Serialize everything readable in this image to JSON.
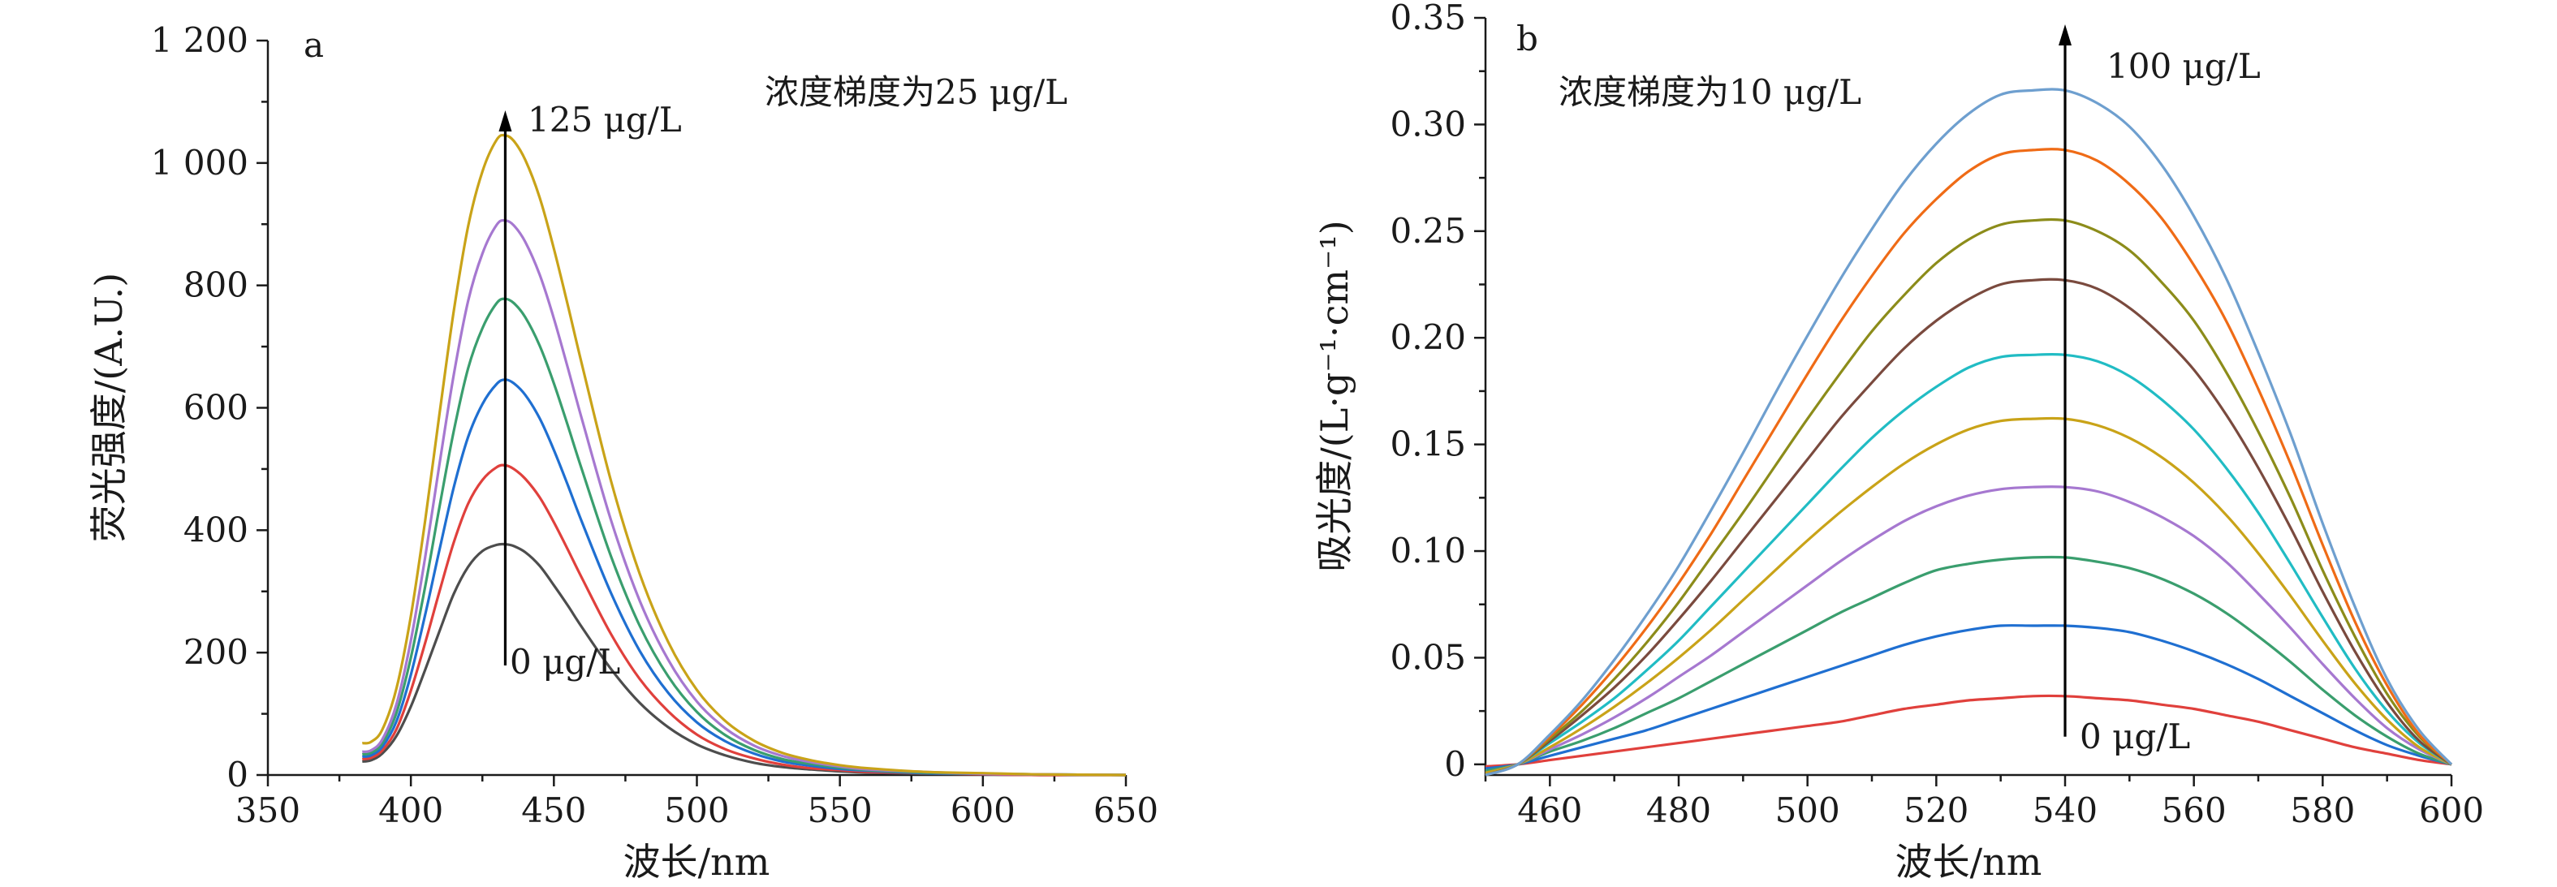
{
  "chart_data": [
    {
      "type": "line",
      "panel_label": "a",
      "xlabel": "波长/nm",
      "ylabel": "荧光强度/(A.U.)",
      "xlim": [
        350,
        650
      ],
      "ylim": [
        0,
        1200
      ],
      "xticks": [
        350,
        400,
        450,
        500,
        550,
        600,
        650
      ],
      "xtick_labels": [
        "350",
        "400",
        "450",
        "500",
        "550",
        "600",
        "650"
      ],
      "yticks": [
        0,
        200,
        400,
        600,
        800,
        1000,
        1200
      ],
      "ytick_labels": [
        "0",
        "200",
        "400",
        "600",
        "800",
        "1 000",
        "1 200"
      ],
      "grid": false,
      "annotations": {
        "gradient_note": "浓度梯度为25 μg/L",
        "arrow_top_label": "125 μg/L",
        "arrow_bottom_label": "0 μg/L",
        "arrow_x": 433,
        "arrow_from_y": 170,
        "arrow_to_y": 1090
      },
      "x": [
        383,
        386,
        390,
        395,
        400,
        405,
        410,
        415,
        420,
        425,
        430,
        433,
        436,
        440,
        445,
        450,
        455,
        460,
        470,
        480,
        490,
        500,
        510,
        520,
        530,
        540,
        550,
        560,
        580,
        600,
        620,
        650
      ],
      "series": [
        {
          "color": "#4d4d4d",
          "values": [
            22,
            24,
            35,
            64,
            112,
            172,
            235,
            296,
            340,
            366,
            376,
            377,
            374,
            364,
            342,
            310,
            276,
            240,
            173,
            118,
            78,
            50,
            32,
            20,
            13,
            9,
            6,
            4,
            2,
            1,
            0,
            0
          ]
        },
        {
          "color": "#e0403c",
          "values": [
            26,
            28,
            40,
            75,
            138,
            216,
            300,
            380,
            443,
            482,
            503,
            506,
            500,
            484,
            454,
            413,
            367,
            320,
            230,
            157,
            104,
            66,
            42,
            27,
            17,
            11,
            8,
            5,
            3,
            1,
            0,
            0
          ]
        },
        {
          "color": "#1f6fd1",
          "values": [
            30,
            32,
            46,
            88,
            164,
            262,
            368,
            470,
            552,
            606,
            639,
            646,
            640,
            621,
            583,
            531,
            472,
            411,
            297,
            203,
            134,
            86,
            55,
            35,
            22,
            15,
            10,
            7,
            3,
            2,
            1,
            0
          ]
        },
        {
          "color": "#3a9e6e",
          "values": [
            34,
            36,
            52,
            102,
            192,
            308,
            438,
            562,
            664,
            730,
            771,
            778,
            771,
            748,
            702,
            640,
            569,
            496,
            357,
            244,
            161,
            103,
            65,
            41,
            26,
            18,
            12,
            8,
            4,
            2,
            1,
            0
          ]
        },
        {
          "color": "#a678d0",
          "values": [
            38,
            40,
            58,
            116,
            220,
            356,
            508,
            654,
            774,
            852,
            899,
            906,
            898,
            871,
            818,
            746,
            663,
            578,
            416,
            285,
            188,
            120,
            76,
            48,
            31,
            21,
            14,
            9,
            5,
            2,
            1,
            0
          ]
        },
        {
          "color": "#c9a318",
          "values": [
            52,
            54,
            74,
            142,
            260,
            416,
            590,
            758,
            896,
            986,
            1038,
            1045,
            1036,
            1005,
            944,
            860,
            765,
            667,
            480,
            329,
            217,
            139,
            88,
            56,
            36,
            24,
            16,
            11,
            5,
            3,
            1,
            0
          ]
        }
      ]
    },
    {
      "type": "line",
      "panel_label": "b",
      "xlabel": "波长/nm",
      "ylabel": "吸光度/(L·g⁻¹·cm⁻¹)",
      "xlim": [
        450,
        600
      ],
      "ylim": [
        -0.005,
        0.35
      ],
      "xticks": [
        460,
        480,
        500,
        520,
        540,
        560,
        580,
        600
      ],
      "xtick_labels": [
        "460",
        "480",
        "500",
        "520",
        "540",
        "560",
        "580",
        "600"
      ],
      "yticks": [
        0,
        0.05,
        0.1,
        0.15,
        0.2,
        0.25,
        0.3,
        0.35
      ],
      "ytick_labels": [
        "0",
        "0.05",
        "0.10",
        "0.15",
        "0.20",
        "0.25",
        "0.30",
        "0.35"
      ],
      "grid": false,
      "annotations": {
        "gradient_note": "浓度梯度为10 μg/L",
        "arrow_top_label": "100 μg/L",
        "arrow_bottom_label": "0 μg/L",
        "arrow_x": 540,
        "arrow_from_y": 0.013,
        "arrow_to_y": 0.35
      },
      "x": [
        450,
        455,
        460,
        465,
        470,
        475,
        480,
        485,
        490,
        495,
        500,
        505,
        510,
        515,
        520,
        525,
        530,
        535,
        540,
        545,
        550,
        555,
        560,
        565,
        570,
        575,
        580,
        585,
        590,
        595,
        600
      ],
      "series": [
        {
          "color": "#e0403c",
          "values": [
            -0.001,
            0.0,
            0.002,
            0.004,
            0.006,
            0.008,
            0.01,
            0.012,
            0.014,
            0.016,
            0.018,
            0.02,
            0.023,
            0.026,
            0.028,
            0.03,
            0.031,
            0.032,
            0.032,
            0.031,
            0.03,
            0.028,
            0.026,
            0.023,
            0.02,
            0.016,
            0.012,
            0.008,
            0.005,
            0.002,
            0.0
          ]
        },
        {
          "color": "#1f6fd1",
          "values": [
            -0.002,
            0.0,
            0.004,
            0.008,
            0.012,
            0.016,
            0.021,
            0.026,
            0.031,
            0.036,
            0.041,
            0.046,
            0.051,
            0.056,
            0.06,
            0.063,
            0.065,
            0.065,
            0.065,
            0.064,
            0.062,
            0.058,
            0.053,
            0.047,
            0.04,
            0.032,
            0.024,
            0.016,
            0.009,
            0.004,
            0.0
          ]
        },
        {
          "color": "#3a9e6e",
          "values": [
            -0.003,
            0.0,
            0.006,
            0.011,
            0.017,
            0.024,
            0.031,
            0.039,
            0.047,
            0.055,
            0.063,
            0.071,
            0.078,
            0.085,
            0.091,
            0.094,
            0.096,
            0.097,
            0.097,
            0.095,
            0.092,
            0.087,
            0.08,
            0.071,
            0.06,
            0.048,
            0.035,
            0.023,
            0.013,
            0.005,
            0.0
          ]
        },
        {
          "color": "#a678d0",
          "values": [
            -0.004,
            0.0,
            0.007,
            0.014,
            0.022,
            0.031,
            0.041,
            0.051,
            0.062,
            0.073,
            0.084,
            0.095,
            0.105,
            0.114,
            0.121,
            0.126,
            0.129,
            0.13,
            0.13,
            0.128,
            0.123,
            0.116,
            0.107,
            0.095,
            0.08,
            0.064,
            0.047,
            0.031,
            0.017,
            0.007,
            0.0
          ]
        },
        {
          "color": "#c9a318",
          "values": [
            -0.004,
            0.0,
            0.008,
            0.017,
            0.027,
            0.038,
            0.05,
            0.063,
            0.077,
            0.091,
            0.105,
            0.118,
            0.13,
            0.141,
            0.15,
            0.157,
            0.161,
            0.162,
            0.162,
            0.159,
            0.153,
            0.144,
            0.132,
            0.117,
            0.099,
            0.079,
            0.058,
            0.038,
            0.021,
            0.008,
            0.0
          ]
        },
        {
          "color": "#21bcc4",
          "values": [
            -0.005,
            0.0,
            0.01,
            0.02,
            0.031,
            0.044,
            0.058,
            0.074,
            0.09,
            0.106,
            0.122,
            0.138,
            0.153,
            0.166,
            0.177,
            0.186,
            0.191,
            0.192,
            0.192,
            0.189,
            0.182,
            0.171,
            0.157,
            0.139,
            0.118,
            0.094,
            0.069,
            0.045,
            0.025,
            0.01,
            0.0
          ]
        },
        {
          "color": "#7a4a3e",
          "values": [
            -0.005,
            0.0,
            0.011,
            0.023,
            0.036,
            0.051,
            0.068,
            0.086,
            0.105,
            0.124,
            0.143,
            0.162,
            0.179,
            0.195,
            0.208,
            0.218,
            0.225,
            0.227,
            0.227,
            0.223,
            0.214,
            0.201,
            0.185,
            0.164,
            0.139,
            0.111,
            0.081,
            0.053,
            0.029,
            0.011,
            0.0
          ]
        },
        {
          "color": "#8c8c1a",
          "values": [
            -0.005,
            0.0,
            0.012,
            0.025,
            0.04,
            0.057,
            0.076,
            0.097,
            0.118,
            0.14,
            0.162,
            0.183,
            0.203,
            0.22,
            0.235,
            0.246,
            0.253,
            0.255,
            0.255,
            0.25,
            0.241,
            0.226,
            0.208,
            0.184,
            0.156,
            0.125,
            0.091,
            0.06,
            0.033,
            0.013,
            0.0
          ]
        },
        {
          "color": "#ef6b16",
          "values": [
            -0.005,
            0.0,
            0.013,
            0.028,
            0.045,
            0.064,
            0.085,
            0.108,
            0.133,
            0.158,
            0.183,
            0.207,
            0.229,
            0.249,
            0.265,
            0.278,
            0.286,
            0.288,
            0.288,
            0.283,
            0.272,
            0.256,
            0.234,
            0.208,
            0.176,
            0.141,
            0.103,
            0.067,
            0.037,
            0.014,
            0.0
          ]
        },
        {
          "color": "#6e9fcf",
          "values": [
            -0.005,
            0.0,
            0.014,
            0.03,
            0.049,
            0.07,
            0.093,
            0.119,
            0.146,
            0.174,
            0.201,
            0.227,
            0.251,
            0.273,
            0.291,
            0.305,
            0.314,
            0.316,
            0.316,
            0.31,
            0.299,
            0.281,
            0.257,
            0.228,
            0.193,
            0.155,
            0.113,
            0.074,
            0.04,
            0.016,
            0.0
          ]
        }
      ]
    }
  ]
}
